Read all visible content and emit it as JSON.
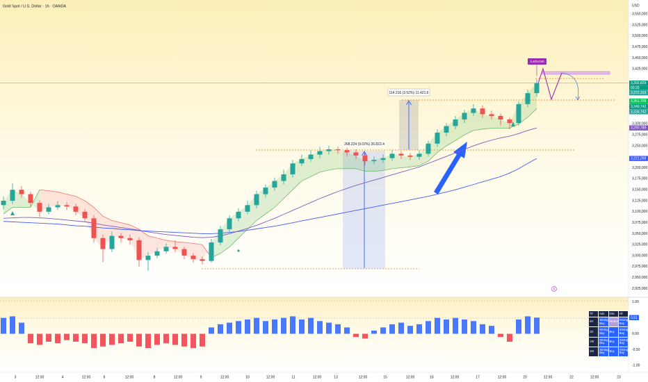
{
  "header": {
    "title": "Gold Spot / U.S. Dollar · 1h · OANDA",
    "currency": "USD"
  },
  "chart_data": [
    {
      "type": "candlestick",
      "open": [
        3115000,
        3125000,
        3150000,
        3140000,
        3120000,
        3100000,
        3110000,
        3115000,
        3112000,
        3100000,
        3085000,
        3040000,
        3015000,
        3045000,
        3040000,
        3035000,
        2990000,
        3000000,
        3010000,
        3020000,
        3015000,
        3000000,
        2992000,
        2988000,
        3030000,
        3060000,
        3085000,
        3100000,
        3115000,
        3140000,
        3155000,
        3170000,
        3185000,
        3210000,
        3220000,
        3230000,
        3238000,
        3242000,
        3240000,
        3235000,
        3228000,
        3215000,
        3218000,
        3222000,
        3232000,
        3228000,
        3225000,
        3232000,
        3255000,
        3280000,
        3295000,
        3310000,
        3325000,
        3335000,
        3322000,
        3318000,
        3310000,
        3302000,
        3345000,
        3370000
      ],
      "high": [
        3135000,
        3165000,
        3158000,
        3146000,
        3126000,
        3118000,
        3124000,
        3122000,
        3118000,
        3106000,
        3092000,
        3048000,
        3055000,
        3052000,
        3048000,
        3042000,
        3008000,
        3018000,
        3028000,
        3035000,
        3020000,
        3006000,
        2998000,
        3038000,
        3068000,
        3092000,
        3108000,
        3125000,
        3148000,
        3162000,
        3178000,
        3196000,
        3218000,
        3230000,
        3240000,
        3248000,
        3250000,
        3248000,
        3246000,
        3242000,
        3234000,
        3226000,
        3230000,
        3240000,
        3238000,
        3234000,
        3240000,
        3262000,
        3288000,
        3302000,
        3318000,
        3332000,
        3345000,
        3342000,
        3330000,
        3324000,
        3315000,
        3352000,
        3378000,
        3402000
      ],
      "low": [
        3105000,
        3118000,
        3132000,
        3110000,
        3088000,
        3094000,
        3104000,
        3104000,
        3092000,
        3078000,
        3030000,
        2985000,
        3008000,
        3030000,
        3025000,
        2975000,
        2965000,
        2994000,
        3004000,
        3008000,
        2992000,
        2984000,
        2980000,
        2984000,
        3024000,
        3054000,
        3078000,
        3094000,
        3108000,
        3132000,
        3148000,
        3162000,
        3178000,
        3204000,
        3214000,
        3222000,
        3230000,
        3232000,
        3226000,
        3220000,
        3206000,
        3208000,
        3212000,
        3216000,
        3220000,
        3218000,
        3218000,
        3226000,
        3248000,
        3272000,
        3288000,
        3302000,
        3318000,
        3314000,
        3310000,
        3296000,
        3288000,
        3296000,
        3338000,
        3362000
      ],
      "close": [
        3125000,
        3150000,
        3140000,
        3120000,
        3100000,
        3110000,
        3115000,
        3112000,
        3100000,
        3085000,
        3040000,
        3015000,
        3045000,
        3040000,
        3035000,
        2990000,
        3000000,
        3010000,
        3020000,
        3015000,
        3000000,
        2992000,
        2988000,
        3030000,
        3060000,
        3085000,
        3100000,
        3115000,
        3140000,
        3155000,
        3170000,
        3185000,
        3210000,
        3220000,
        3230000,
        3238000,
        3242000,
        3240000,
        3235000,
        3228000,
        3215000,
        3218000,
        3222000,
        3232000,
        3228000,
        3225000,
        3232000,
        3255000,
        3280000,
        3295000,
        3310000,
        3325000,
        3335000,
        3322000,
        3318000,
        3310000,
        3302000,
        3345000,
        3370000,
        3392829
      ],
      "up_color": "#26a69a",
      "down_color": "#ef5350",
      "series": [
        {
          "color": "#7e57c2",
          "values": [
            3085000,
            3086000,
            3087000,
            3087000,
            3086000,
            3085000,
            3083000,
            3081000,
            3079000,
            3077000,
            3074000,
            3070000,
            3067000,
            3064000,
            3061000,
            3058000,
            3054000,
            3051000,
            3048000,
            3046000,
            3044000,
            3042000,
            3041000,
            3042000,
            3045000,
            3050000,
            3056000,
            3062000,
            3069000,
            3077000,
            3085000,
            3094000,
            3103000,
            3112000,
            3121000,
            3130000,
            3138000,
            3146000,
            3153000,
            3160000,
            3166000,
            3172000,
            3178000,
            3184000,
            3190000,
            3196000,
            3202000,
            3210000,
            3218000,
            3226000,
            3234000,
            3242000,
            3250000,
            3257000,
            3263000,
            3268000,
            3272000,
            3278000,
            3285000,
            3290789
          ]
        },
        {
          "color": "#3d5afe",
          "values": [
            3078000,
            3077000,
            3076000,
            3075000,
            3074000,
            3073000,
            3072000,
            3070000,
            3068000,
            3067000,
            3065000,
            3063000,
            3062000,
            3060000,
            3059000,
            3057000,
            3056000,
            3055000,
            3054000,
            3053000,
            3052000,
            3051000,
            3050000,
            3050000,
            3051000,
            3053000,
            3055000,
            3058000,
            3061000,
            3064000,
            3067000,
            3071000,
            3075000,
            3079000,
            3083000,
            3087000,
            3091000,
            3095000,
            3099000,
            3103000,
            3107000,
            3111000,
            3115000,
            3119000,
            3123000,
            3127000,
            3131000,
            3135000,
            3140000,
            3145000,
            3150000,
            3156000,
            3162000,
            3168000,
            3174000,
            3180000,
            3188000,
            3198000,
            3210000,
            3221268
          ]
        }
      ],
      "band": {
        "up_color": "#4caf50",
        "down_color": "#ef5350",
        "values": [
          3095000,
          3110000,
          3110000,
          3110000,
          3150000,
          3148000,
          3145000,
          3140000,
          3135000,
          3125000,
          3110000,
          3090000,
          3080000,
          3075000,
          3070000,
          3060000,
          3045000,
          3040000,
          3035000,
          3032000,
          3030000,
          3028000,
          3025000,
          2995000,
          3005000,
          3020000,
          3040000,
          3060000,
          3080000,
          3095000,
          3110000,
          3130000,
          3150000,
          3170000,
          3180000,
          3190000,
          3195000,
          3198000,
          3198000,
          3198000,
          3192000,
          3192000,
          3194000,
          3198000,
          3200000,
          3202000,
          3205000,
          3215000,
          3235000,
          3250000,
          3262000,
          3275000,
          3285000,
          3288000,
          3290000,
          3290000,
          3290000,
          3300000,
          3315000,
          3335000
        ]
      },
      "ylim": [
        2910000,
        3582000
      ],
      "yticks": [
        {
          "value": 2925000,
          "label": "2,925,000"
        },
        {
          "value": 2950000,
          "label": "2,950,000"
        },
        {
          "value": 2975000,
          "label": "2,975,000"
        },
        {
          "value": 3000000,
          "label": "3,000,000"
        },
        {
          "value": 3025000,
          "label": "3,025,000"
        },
        {
          "value": 3050000,
          "label": "3,050,000"
        },
        {
          "value": 3075000,
          "label": "3,075,000"
        },
        {
          "value": 3100000,
          "label": "3,100,000"
        },
        {
          "value": 3125000,
          "label": "3,125,000"
        },
        {
          "value": 3150000,
          "label": "3,150,000"
        },
        {
          "value": 3175000,
          "label": "3,175,000"
        },
        {
          "value": 3200000,
          "label": "3,200,000"
        },
        {
          "value": 3250000,
          "label": "3,250,000"
        },
        {
          "value": 3275000,
          "label": "3,275,000"
        },
        {
          "value": 3300000,
          "label": "3,300,000"
        },
        {
          "value": 3425000,
          "label": "3,425,000"
        },
        {
          "value": 3450000,
          "label": "3,450,000"
        },
        {
          "value": 3475000,
          "label": "3,475,000"
        },
        {
          "value": 3500000,
          "label": "3,500,000"
        },
        {
          "value": 3525000,
          "label": "3,525,000"
        },
        {
          "value": 3550000,
          "label": "3,550,000"
        }
      ],
      "grid": false,
      "price_tags": [
        {
          "value": 3392829,
          "label": "3,392,829",
          "color": "#089981"
        },
        {
          "value": 3372103,
          "label": "3,372,103",
          "color": "#26a69a"
        },
        {
          "value": 3351709,
          "label": "3,351,709",
          "color": "#00c853"
        },
        {
          "value": 3340742,
          "label": "3,340,742",
          "color": "#089981"
        },
        {
          "value": 3334742,
          "label": "3,334,742",
          "color": "#26a69a"
        },
        {
          "value": 3290789,
          "label": "3,290,789",
          "color": "#7e57c2"
        },
        {
          "value": 3221268,
          "label": "3,221,268",
          "color": "#3d5afe"
        }
      ],
      "target": {
        "value": 3409049,
        "label": "3,409,049",
        "color": "#9c27b0"
      }
    },
    {
      "type": "bar",
      "values": [
        0.5,
        0.55,
        0.35,
        -0.3,
        -0.35,
        -0.25,
        -0.3,
        -0.2,
        -0.25,
        -0.3,
        -0.45,
        -0.4,
        -0.35,
        -0.3,
        -0.25,
        -0.4,
        -0.45,
        -0.35,
        -0.3,
        -0.35,
        -0.4,
        -0.45,
        -0.4,
        0.2,
        0.3,
        0.35,
        0.4,
        0.45,
        0.5,
        0.4,
        0.45,
        0.5,
        0.55,
        0.45,
        0.5,
        0.4,
        0.35,
        0.3,
        0.2,
        -0.1,
        -0.15,
        0.1,
        0.2,
        0.3,
        0.35,
        0.25,
        0.3,
        0.4,
        0.5,
        0.45,
        0.5,
        0.45,
        0.4,
        0.3,
        0.25,
        -0.1,
        -0.25,
        0.45,
        0.55,
        0.51
      ],
      "positive_color": "#2962ff",
      "negative_color": "#f23645",
      "last_color": "#2962ff",
      "ylim": [
        -1.3,
        1.15
      ],
      "yticks": [
        {
          "value": 1,
          "label": "1.00"
        },
        {
          "value": 0,
          "label": "0.00"
        },
        {
          "value": -0.5,
          "label": "-0.50"
        },
        {
          "value": -1,
          "label": "-1.00"
        }
      ],
      "grid": false
    }
  ],
  "x_axis_labels": [
    "3",
    "12:00",
    "4",
    "12:00",
    "6",
    "12:00",
    "8",
    "12:00",
    "9",
    "12:00",
    "10",
    "12:00",
    "11",
    "12:00",
    "13",
    "12:00",
    "15",
    "12:00",
    "16",
    "12:00",
    "17",
    "12:00",
    "20",
    "12:00",
    "22",
    "12:00",
    "23"
  ],
  "annotations": {
    "measure_1": "268.224 (9.02%) 26.822,4",
    "measure_2": "114.216 (3.52%) 11.421,6",
    "countdown": "00:33",
    "event_badge": "6"
  },
  "signal_table": {
    "header": [
      "TF",
      "Adx",
      "Osc",
      "All"
    ],
    "rows": [
      [
        "4H",
        "Strong Buy",
        "Neutral",
        "Strong Buy"
      ],
      [
        "1D",
        "Strong Buy",
        "Buy",
        "Strong Buy"
      ],
      [
        "1W",
        "Strong Buy",
        "Buy",
        "Strong Buy"
      ],
      [
        "1M",
        "Strong Buy",
        "Buy",
        "Strong Buy"
      ]
    ]
  }
}
